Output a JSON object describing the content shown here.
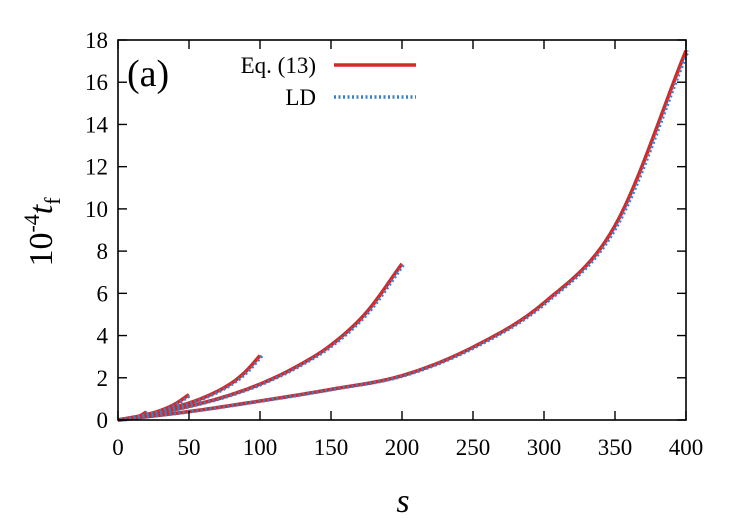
{
  "chart_data": {
    "type": "line",
    "panel_label": "(a)",
    "xlabel": "s",
    "ylabel": {
      "prefix": "10",
      "exponent": "-4",
      "variable": "t",
      "subscript": "f"
    },
    "xlim": [
      0,
      400
    ],
    "ylim": [
      0,
      18
    ],
    "xticks": [
      "0",
      "50",
      "100",
      "150",
      "200",
      "250",
      "300",
      "350",
      "400"
    ],
    "yticks": [
      "0",
      "2",
      "4",
      "6",
      "8",
      "10",
      "12",
      "14",
      "16",
      "18"
    ],
    "grid": false,
    "legend_position": "top-left",
    "legend": [
      {
        "label": "Eq. (13)",
        "color": "#d62728",
        "style": "solid"
      },
      {
        "label": "LD",
        "color": "#3f7fbf",
        "style": "dotted"
      }
    ],
    "curves": [
      {
        "s_max": 20,
        "x": [
          0,
          5,
          10,
          15,
          20
        ],
        "y": [
          0,
          0.03,
          0.08,
          0.18,
          0.38
        ]
      },
      {
        "s_max": 50,
        "x": [
          0,
          10,
          20,
          30,
          40,
          50
        ],
        "y": [
          0,
          0.1,
          0.25,
          0.45,
          0.75,
          1.2
        ]
      },
      {
        "s_max": 100,
        "x": [
          0,
          20,
          40,
          60,
          80,
          90,
          100
        ],
        "y": [
          0,
          0.25,
          0.6,
          1.05,
          1.75,
          2.3,
          3.05
        ]
      },
      {
        "s_max": 200,
        "x": [
          0,
          25,
          50,
          75,
          100,
          125,
          150,
          175,
          200
        ],
        "y": [
          0,
          0.3,
          0.65,
          1.1,
          1.7,
          2.5,
          3.55,
          5.1,
          7.4
        ]
      },
      {
        "s_max": 400,
        "x": [
          0,
          50,
          100,
          150,
          200,
          250,
          300,
          350,
          400
        ],
        "y": [
          0,
          0.4,
          0.9,
          1.45,
          2.1,
          3.45,
          5.55,
          9.2,
          17.5
        ]
      }
    ]
  }
}
